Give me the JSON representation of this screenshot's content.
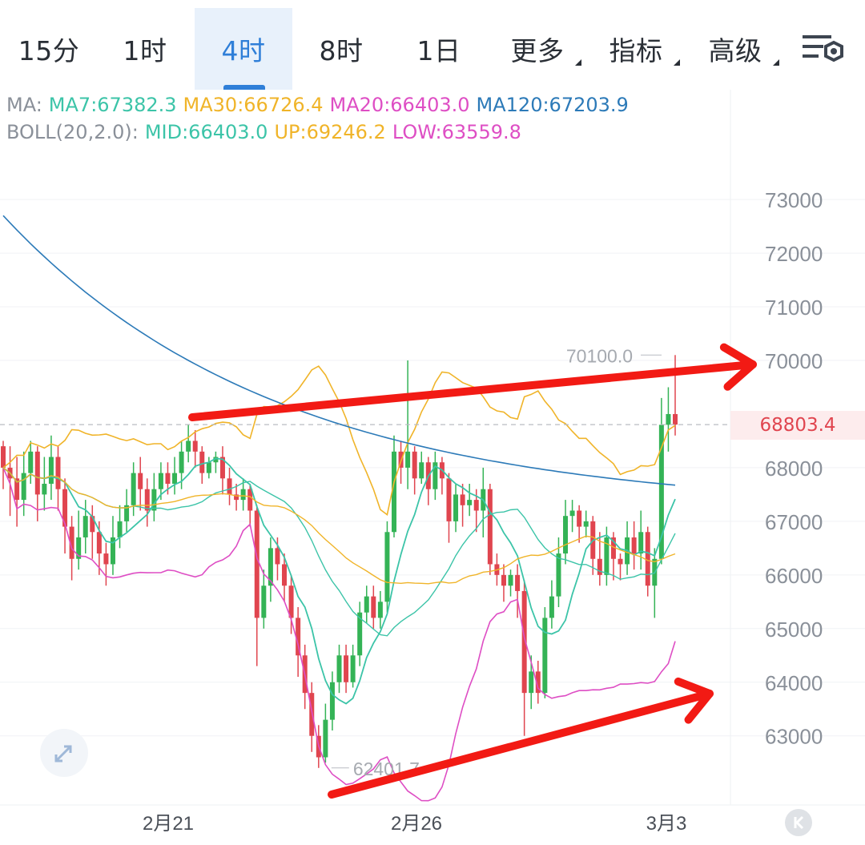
{
  "tabs": [
    {
      "label": "15分",
      "active": false
    },
    {
      "label": "1时",
      "active": false
    },
    {
      "label": "4时",
      "active": true
    },
    {
      "label": "8时",
      "active": false
    },
    {
      "label": "1日",
      "active": false
    },
    {
      "label": "更多",
      "active": false
    },
    {
      "label": "指标",
      "active": false
    },
    {
      "label": "高级",
      "active": false
    }
  ],
  "settings_icon": "chart-settings-icon",
  "legend_ma": {
    "prefix": "MA:",
    "ma7": "MA7:67382.3",
    "ma30": "MA30:66726.4",
    "ma20": "MA20:66403.0",
    "ma120": "MA120:67203.9"
  },
  "legend_boll": {
    "prefix": "BOLL(20,2.0):",
    "mid": "MID:66403.0",
    "up": "UP:69246.2",
    "low": "LOW:63559.8"
  },
  "current_price": "68803.4",
  "high_label": "70100.0",
  "low_label": "62401.7",
  "colors": {
    "up": "#34b356",
    "down": "#e0454f",
    "ma7": "#3cc4a8",
    "ma30": "#f0b429",
    "ma20": "#de4ec4",
    "ma120": "#2c7ab8",
    "accent": "#2f7fd8",
    "annotation": "#f21a14"
  },
  "chart_data": {
    "type": "candlestick",
    "y_ticks": [
      73000,
      72000,
      71000,
      70000,
      68000,
      67000,
      66000,
      65000,
      64000,
      63000
    ],
    "x_ticks": [
      "2月21",
      "2月26",
      "3月3"
    ],
    "ylim": [
      62100,
      73600
    ],
    "last_price": 68803.4,
    "high": 70100.0,
    "low": 62401.7,
    "candles": [
      [
        68400,
        68000,
        68500,
        67600
      ],
      [
        68000,
        67800,
        68400,
        67100
      ],
      [
        67800,
        67400,
        68200,
        66900
      ],
      [
        67400,
        67900,
        68300,
        67100
      ],
      [
        67900,
        68300,
        68500,
        67700
      ],
      [
        68300,
        67500,
        68400,
        67000
      ],
      [
        67500,
        67700,
        68200,
        67200
      ],
      [
        67700,
        68200,
        68600,
        67400
      ],
      [
        68200,
        67600,
        68400,
        67200
      ],
      [
        67600,
        66900,
        67800,
        66400
      ],
      [
        66900,
        66300,
        67100,
        65900
      ],
      [
        66300,
        66700,
        67200,
        66100
      ],
      [
        66700,
        67100,
        67400,
        66400
      ],
      [
        67100,
        66800,
        67300,
        66300
      ],
      [
        66800,
        66400,
        67000,
        66000
      ],
      [
        66400,
        66200,
        66600,
        65800
      ],
      [
        66200,
        66700,
        67100,
        66000
      ],
      [
        66700,
        67000,
        67300,
        66500
      ],
      [
        67000,
        67300,
        67600,
        66800
      ],
      [
        67300,
        67900,
        68100,
        67100
      ],
      [
        67900,
        67600,
        68200,
        67200
      ],
      [
        67600,
        67200,
        67800,
        66900
      ],
      [
        67200,
        67600,
        67900,
        67000
      ],
      [
        67600,
        67900,
        68100,
        67400
      ],
      [
        67900,
        67700,
        68100,
        67500
      ],
      [
        67700,
        67900,
        68200,
        67500
      ],
      [
        67900,
        68300,
        68500,
        67600
      ],
      [
        68300,
        68500,
        68800,
        68100
      ],
      [
        68500,
        68300,
        68700,
        68000
      ],
      [
        68300,
        67900,
        68400,
        67700
      ],
      [
        67900,
        68100,
        68200,
        67800
      ],
      [
        68100,
        68200,
        68300,
        67900
      ],
      [
        68200,
        67800,
        68400,
        67500
      ],
      [
        67800,
        67500,
        68000,
        67300
      ],
      [
        67500,
        67400,
        67700,
        67200
      ],
      [
        67400,
        67600,
        67800,
        67200
      ],
      [
        67600,
        67200,
        67700,
        66900
      ],
      [
        67200,
        65200,
        67300,
        64300
      ],
      [
        65200,
        65800,
        66100,
        65000
      ],
      [
        65800,
        66500,
        66700,
        65500
      ],
      [
        66500,
        66200,
        66700,
        65900
      ],
      [
        66200,
        65800,
        66400,
        65500
      ],
      [
        65800,
        65200,
        66000,
        64900
      ],
      [
        65200,
        64500,
        65400,
        64100
      ],
      [
        64500,
        63800,
        64700,
        63500
      ],
      [
        63800,
        63000,
        64000,
        62700
      ],
      [
        63000,
        62600,
        63200,
        62401.7
      ],
      [
        62600,
        63300,
        63600,
        62500
      ],
      [
        63300,
        64000,
        64200,
        63100
      ],
      [
        64000,
        64500,
        64700,
        63800
      ],
      [
        64500,
        64000,
        64700,
        63800
      ],
      [
        64000,
        64500,
        64700,
        63900
      ],
      [
        64500,
        65300,
        65500,
        64300
      ],
      [
        65300,
        65600,
        65800,
        65100
      ],
      [
        65600,
        65200,
        65800,
        65000
      ],
      [
        65200,
        65500,
        65700,
        65000
      ],
      [
        65500,
        66800,
        67000,
        65300
      ],
      [
        66800,
        68300,
        68600,
        66700
      ],
      [
        68300,
        68000,
        68500,
        67700
      ],
      [
        68000,
        68300,
        70000,
        67600
      ],
      [
        68300,
        67800,
        68400,
        67500
      ],
      [
        67800,
        68100,
        68300,
        67700
      ],
      [
        68100,
        67600,
        68200,
        67300
      ],
      [
        67600,
        68100,
        68300,
        67400
      ],
      [
        68100,
        67800,
        68200,
        67500
      ],
      [
        67800,
        67000,
        67900,
        66600
      ],
      [
        67000,
        67500,
        67700,
        66800
      ],
      [
        67500,
        67300,
        67700,
        66900
      ],
      [
        67300,
        67400,
        67700,
        67100
      ],
      [
        67400,
        67200,
        67600,
        66800
      ],
      [
        67200,
        67600,
        68000,
        66700
      ],
      [
        67600,
        66200,
        67700,
        66000
      ],
      [
        66200,
        66000,
        66400,
        65800
      ],
      [
        66000,
        65800,
        66200,
        65500
      ],
      [
        65800,
        66000,
        66100,
        65600
      ],
      [
        66000,
        65700,
        66200,
        65200
      ],
      [
        65700,
        63800,
        65900,
        63000
      ],
      [
        63800,
        64200,
        64500,
        63500
      ],
      [
        64200,
        63800,
        64400,
        63600
      ],
      [
        63800,
        65200,
        65400,
        63700
      ],
      [
        65200,
        65600,
        65900,
        65000
      ],
      [
        65600,
        66400,
        66700,
        65400
      ],
      [
        66400,
        67100,
        67400,
        66200
      ],
      [
        67100,
        67200,
        67400,
        66800
      ],
      [
        67200,
        66900,
        67300,
        66600
      ],
      [
        66900,
        67000,
        67200,
        66700
      ],
      [
        67000,
        66300,
        67100,
        66000
      ],
      [
        66300,
        66000,
        66800,
        65800
      ],
      [
        66000,
        66700,
        66900,
        65800
      ],
      [
        66700,
        66300,
        66800,
        65900
      ],
      [
        66300,
        66200,
        66400,
        65900
      ],
      [
        66200,
        66700,
        67000,
        66000
      ],
      [
        66700,
        66400,
        67000,
        66100
      ],
      [
        66400,
        66800,
        67200,
        66100
      ],
      [
        66800,
        65800,
        66900,
        65600
      ],
      [
        65800,
        66300,
        66500,
        65200
      ],
      [
        66300,
        68800,
        69300,
        66200
      ],
      [
        68800,
        69000,
        69500,
        68300
      ],
      [
        69000,
        68803.4,
        70100,
        68600
      ]
    ],
    "annotation_arrows": [
      {
        "from": [
          68900,
          "left"
        ],
        "to": [
          70000,
          "right"
        ]
      },
      {
        "from": [
          62500,
          "left"
        ],
        "to": [
          64000,
          "right"
        ]
      }
    ]
  }
}
